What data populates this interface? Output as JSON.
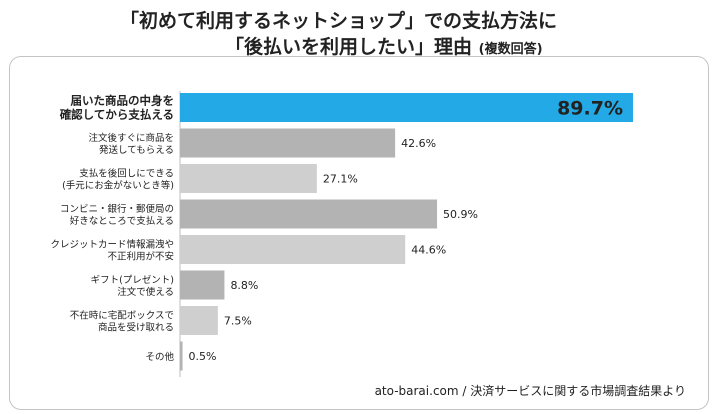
{
  "title_line1": "「初めて利用するネットショップ」での支払方法に",
  "title_line2": "「後払いを利用したい」理由",
  "title_note": "(複数回答)",
  "source": "ato-barai.com / 決済サービスに関する市場調査結果より",
  "colors": {
    "highlight": "#22a9e6",
    "bar_dark": "#b3b3b3",
    "bar_light": "#cfcfcf",
    "axis": "#bdbdbd"
  },
  "chart_data": {
    "type": "bar",
    "orientation": "horizontal",
    "categories": [
      [
        "届いた商品の中身を",
        "確認してから支払える"
      ],
      [
        "注文後すぐに商品を",
        "発送してもらえる"
      ],
      [
        "支払を後回しにできる",
        "(手元にお金がないとき等)"
      ],
      [
        "コンビニ・銀行・郵便局の",
        "好きなところで支払える"
      ],
      [
        "クレジットカード情報漏洩や",
        "不正利用が不安"
      ],
      [
        "ギフト(プレゼント)",
        "注文で使える"
      ],
      [
        "不在時に宅配ボックスで",
        "商品を受け取れる"
      ],
      [
        "その他"
      ]
    ],
    "values": [
      89.7,
      42.6,
      27.1,
      50.9,
      44.6,
      8.8,
      7.5,
      0.5
    ],
    "value_labels": [
      "89.7%",
      "42.6%",
      "27.1%",
      "50.9%",
      "44.6%",
      "8.8%",
      "7.5%",
      "0.5%"
    ],
    "xlim": [
      0,
      100
    ],
    "highlight_index": 0,
    "grid": false
  }
}
